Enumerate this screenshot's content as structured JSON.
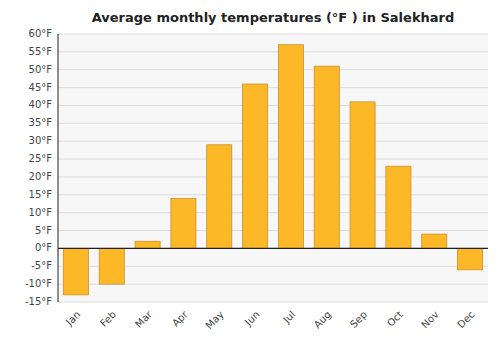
{
  "chart_data": {
    "type": "bar",
    "title": "Average monthly temperatures (°F ) in Salekhard",
    "categories": [
      "Jan",
      "Feb",
      "Mar",
      "Apr",
      "May",
      "Jun",
      "Jul",
      "Aug",
      "Sep",
      "Oct",
      "Nov",
      "Dec"
    ],
    "values": [
      -13,
      -10,
      2,
      14,
      29,
      46,
      57,
      51,
      41,
      23,
      4,
      -6
    ],
    "color": "#FDB827",
    "ylim": [
      -15,
      60
    ],
    "yticks": [
      {
        "value": -15,
        "label": "-15°F"
      },
      {
        "value": -10,
        "label": "-10°F"
      },
      {
        "value": -5,
        "label": "-5°F"
      },
      {
        "value": 0,
        "label": "0°F"
      },
      {
        "value": 5,
        "label": "5°F"
      },
      {
        "value": 10,
        "label": "10°F"
      },
      {
        "value": 15,
        "label": "15°F"
      },
      {
        "value": 20,
        "label": "20°F"
      },
      {
        "value": 25,
        "label": "25°F"
      },
      {
        "value": 30,
        "label": "30°F"
      },
      {
        "value": 35,
        "label": "35°F"
      },
      {
        "value": 40,
        "label": "40°F"
      },
      {
        "value": 45,
        "label": "45°F"
      },
      {
        "value": 50,
        "label": "50°F"
      },
      {
        "value": 55,
        "label": "55°F"
      },
      {
        "value": 60,
        "label": "60°F"
      }
    ],
    "grid": true
  }
}
